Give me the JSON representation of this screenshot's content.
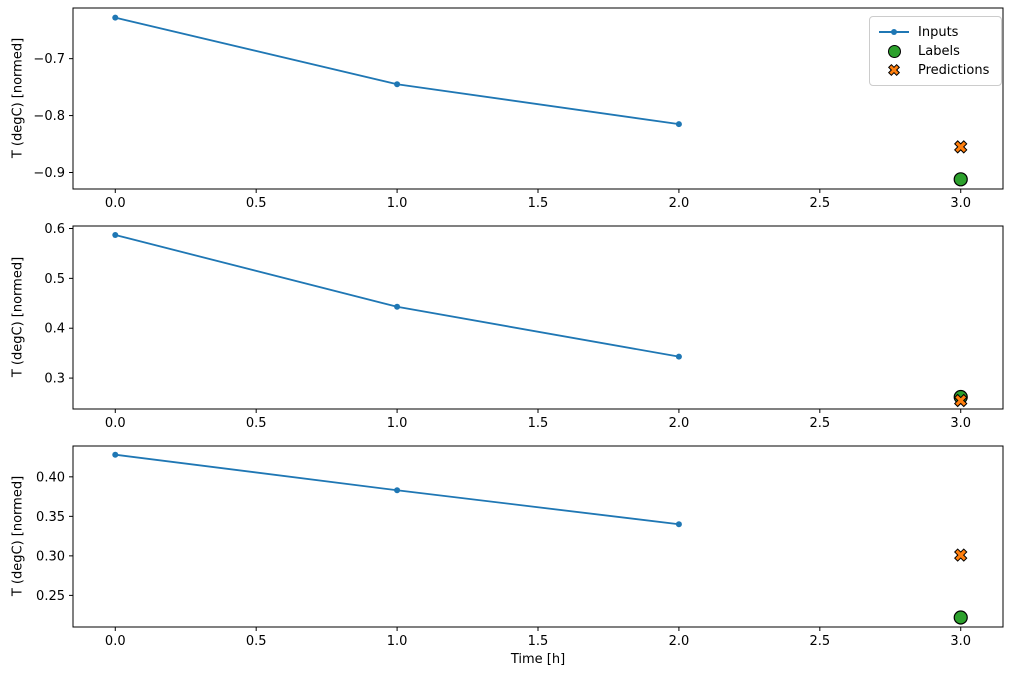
{
  "figure": {
    "background": "#ffffff",
    "xlabel": "Time [h]"
  },
  "legend": {
    "position": "upper-right-subplot-1",
    "entries": [
      {
        "label": "Inputs",
        "marker": "line-with-dot",
        "color": "#1f77b4"
      },
      {
        "label": "Labels",
        "marker": "circle",
        "color": "#2ca02c"
      },
      {
        "label": "Predictions",
        "marker": "x-cross",
        "color": "#ff7f0e"
      }
    ]
  },
  "chart_data": [
    {
      "type": "line",
      "title": "",
      "xlabel": "",
      "ylabel": "T (degC) [normed]",
      "grid": false,
      "legend_visible": true,
      "xlim": [
        -0.15,
        3.15
      ],
      "ylim": [
        -0.929,
        -0.611
      ],
      "xticks": {
        "values": [
          0.0,
          0.5,
          1.0,
          1.5,
          2.0,
          2.5,
          3.0
        ],
        "labels": [
          "0.0",
          "0.5",
          "1.0",
          "1.5",
          "2.0",
          "2.5",
          "3.0"
        ]
      },
      "yticks": {
        "values": [
          -0.9,
          -0.8,
          -0.7
        ],
        "labels": [
          "−0.9",
          "−0.8",
          "−0.7"
        ]
      },
      "series": [
        {
          "name": "Inputs",
          "type": "line",
          "marker": "dot",
          "color": "#1f77b4",
          "x": [
            0,
            1,
            2
          ],
          "y": [
            -0.628,
            -0.745,
            -0.815
          ]
        },
        {
          "name": "Labels",
          "type": "scatter",
          "marker": "circle",
          "color": "#2ca02c",
          "x": [
            3
          ],
          "y": [
            -0.912
          ]
        },
        {
          "name": "Predictions",
          "type": "scatter",
          "marker": "X",
          "color": "#ff7f0e",
          "x": [
            3
          ],
          "y": [
            -0.855
          ]
        }
      ]
    },
    {
      "type": "line",
      "title": "",
      "xlabel": "",
      "ylabel": "T (degC) [normed]",
      "grid": false,
      "legend_visible": false,
      "xlim": [
        -0.15,
        3.15
      ],
      "ylim": [
        0.238,
        0.605
      ],
      "xticks": {
        "values": [
          0.0,
          0.5,
          1.0,
          1.5,
          2.0,
          2.5,
          3.0
        ],
        "labels": [
          "0.0",
          "0.5",
          "1.0",
          "1.5",
          "2.0",
          "2.5",
          "3.0"
        ]
      },
      "yticks": {
        "values": [
          0.3,
          0.4,
          0.5,
          0.6
        ],
        "labels": [
          "0.3",
          "0.4",
          "0.5",
          "0.6"
        ]
      },
      "series": [
        {
          "name": "Inputs",
          "type": "line",
          "marker": "dot",
          "color": "#1f77b4",
          "x": [
            0,
            1,
            2
          ],
          "y": [
            0.587,
            0.443,
            0.343
          ]
        },
        {
          "name": "Labels",
          "type": "scatter",
          "marker": "circle",
          "color": "#2ca02c",
          "x": [
            3
          ],
          "y": [
            0.262
          ]
        },
        {
          "name": "Predictions",
          "type": "scatter",
          "marker": "X",
          "color": "#ff7f0e",
          "x": [
            3
          ],
          "y": [
            0.255
          ]
        }
      ]
    },
    {
      "type": "line",
      "title": "",
      "xlabel": "Time [h]",
      "ylabel": "T (degC) [normed]",
      "grid": false,
      "legend_visible": false,
      "xlim": [
        -0.15,
        3.15
      ],
      "ylim": [
        0.21,
        0.439
      ],
      "xticks": {
        "values": [
          0.0,
          0.5,
          1.0,
          1.5,
          2.0,
          2.5,
          3.0
        ],
        "labels": [
          "0.0",
          "0.5",
          "1.0",
          "1.5",
          "2.0",
          "2.5",
          "3.0"
        ]
      },
      "yticks": {
        "values": [
          0.25,
          0.3,
          0.35,
          0.4
        ],
        "labels": [
          "0.25",
          "0.30",
          "0.35",
          "0.40"
        ]
      },
      "series": [
        {
          "name": "Inputs",
          "type": "line",
          "marker": "dot",
          "color": "#1f77b4",
          "x": [
            0,
            1,
            2
          ],
          "y": [
            0.428,
            0.383,
            0.34
          ]
        },
        {
          "name": "Labels",
          "type": "scatter",
          "marker": "circle",
          "color": "#2ca02c",
          "x": [
            3
          ],
          "y": [
            0.222
          ]
        },
        {
          "name": "Predictions",
          "type": "scatter",
          "marker": "X",
          "color": "#ff7f0e",
          "x": [
            3
          ],
          "y": [
            0.301
          ]
        }
      ]
    }
  ]
}
